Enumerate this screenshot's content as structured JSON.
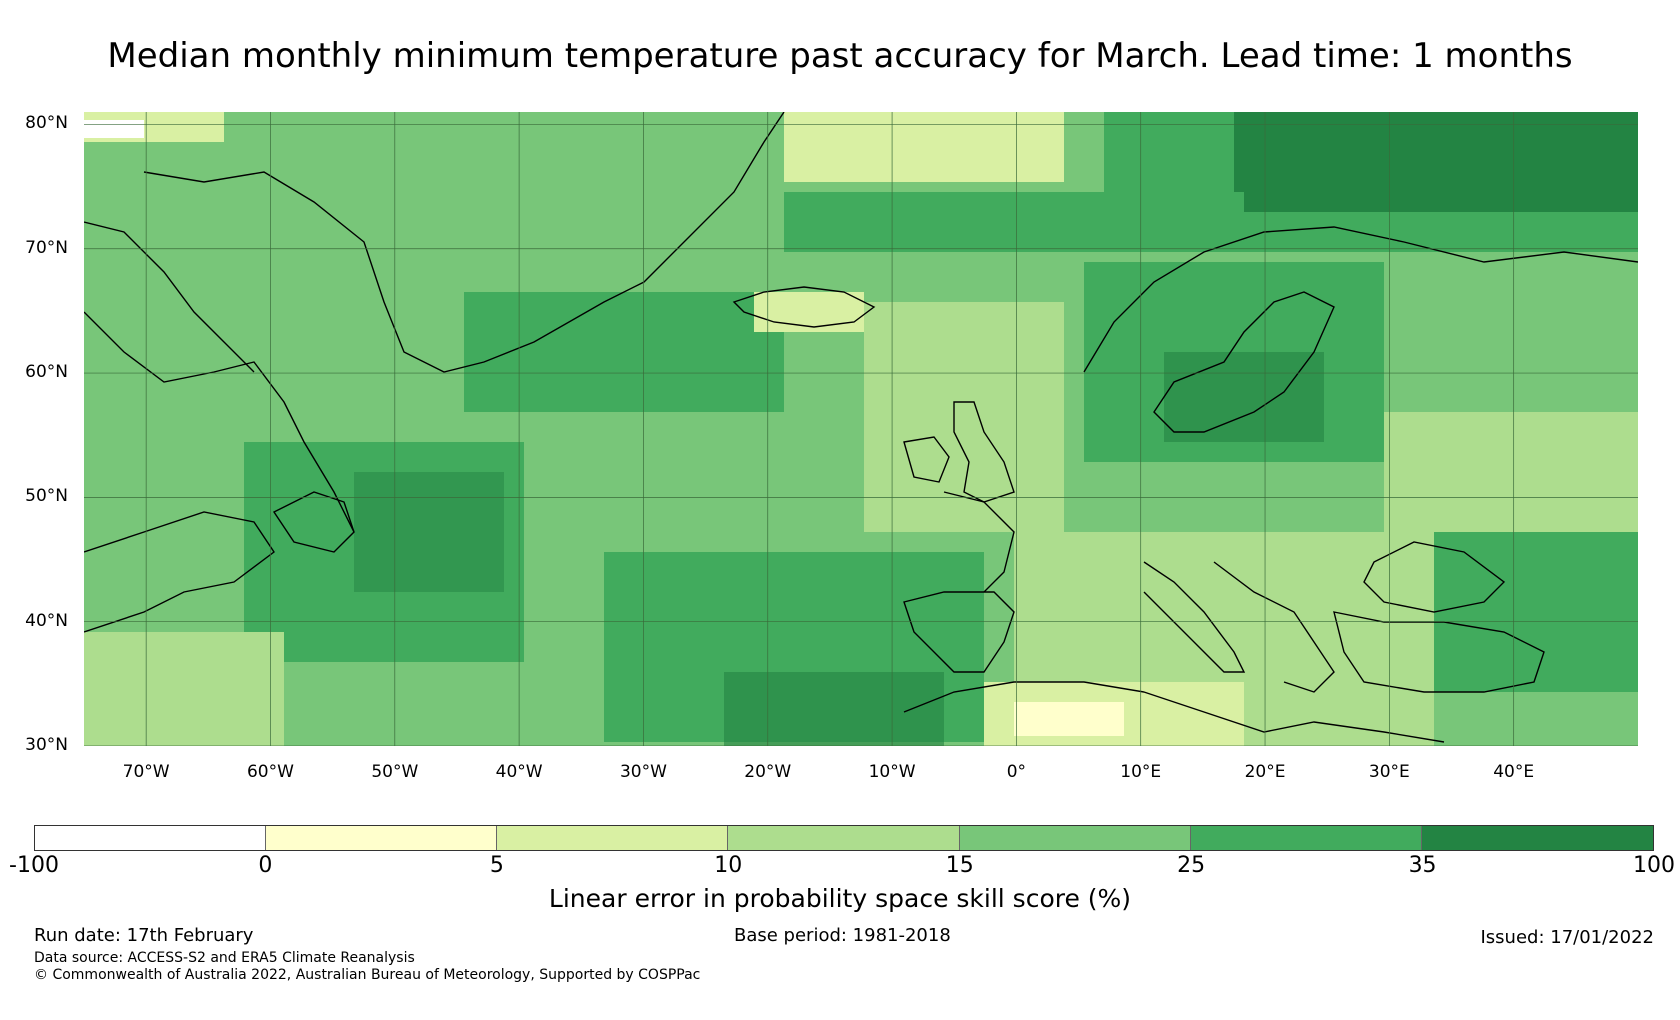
{
  "title": "Median monthly minimum temperature past accuracy for March. Lead time: 1 months",
  "map": {
    "lat_labels": [
      "80°N",
      "70°N",
      "60°N",
      "50°N",
      "40°N",
      "30°N"
    ],
    "lon_labels": [
      "70°W",
      "60°W",
      "50°W",
      "40°W",
      "30°W",
      "20°W",
      "10°W",
      "0°",
      "10°E",
      "20°E",
      "30°E",
      "40°E"
    ],
    "lat_range": [
      30,
      81
    ],
    "lon_range": [
      -75,
      50
    ],
    "gridline_color": "#3a6b3a",
    "coastline_color": "#000000"
  },
  "colorbar": {
    "label": "Linear error in probability space skill score (%)",
    "ticks": [
      "-100",
      "0",
      "5",
      "10",
      "15",
      "25",
      "35",
      "100"
    ],
    "segments": [
      {
        "from": -100,
        "to": 0,
        "color": "#ffffff"
      },
      {
        "from": 0,
        "to": 5,
        "color": "#ffffcc"
      },
      {
        "from": 5,
        "to": 10,
        "color": "#d9f0a3"
      },
      {
        "from": 10,
        "to": 15,
        "color": "#addd8e"
      },
      {
        "from": 15,
        "to": 25,
        "color": "#78c679"
      },
      {
        "from": 25,
        "to": 35,
        "color": "#41ab5d"
      },
      {
        "from": 35,
        "to": 100,
        "color": "#238443"
      }
    ]
  },
  "footer": {
    "run_date": "Run date: 17th February",
    "base_period": "Base period: 1981-2018",
    "issued": "Issued: 17/01/2022",
    "data_source": "Data source: ACCESS-S2 and ERA5 Climate Reanalysis",
    "copyright": "© Commonwealth of Australia 2022, Australian Bureau of Meteorology, Supported by COSPPac"
  }
}
